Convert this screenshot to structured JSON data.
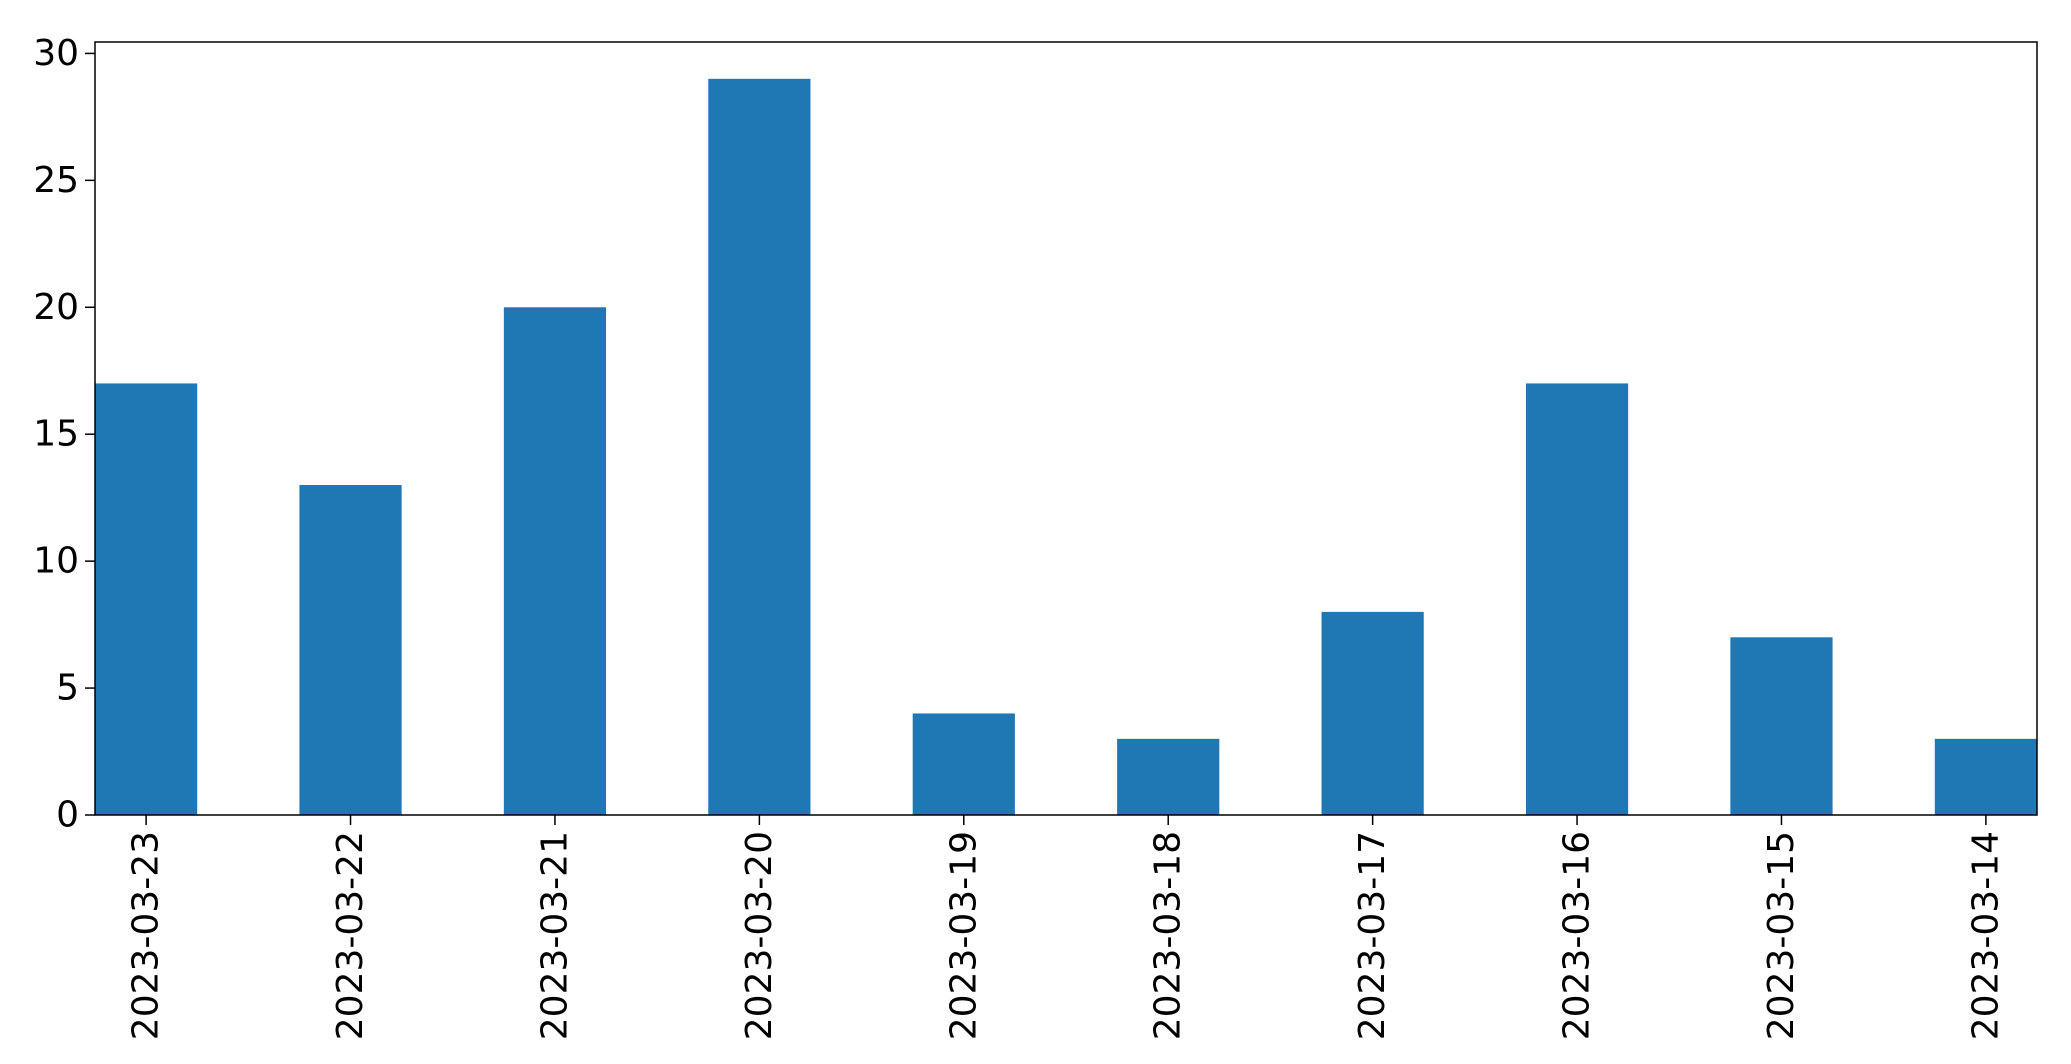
{
  "chart_data": {
    "type": "bar",
    "title": "",
    "xlabel": "",
    "ylabel": "",
    "categories": [
      "2023-03-23",
      "2023-03-22",
      "2023-03-21",
      "2023-03-20",
      "2023-03-19",
      "2023-03-18",
      "2023-03-17",
      "2023-03-16",
      "2023-03-15",
      "2023-03-14"
    ],
    "values": [
      17,
      13,
      20,
      29,
      4,
      3,
      8,
      17,
      7,
      3
    ],
    "ylim": [
      0,
      30.45
    ],
    "yticks": [
      0,
      5,
      10,
      15,
      20,
      25,
      30
    ],
    "grid": false,
    "legend": "none",
    "bar_color": "#1f77b4"
  }
}
